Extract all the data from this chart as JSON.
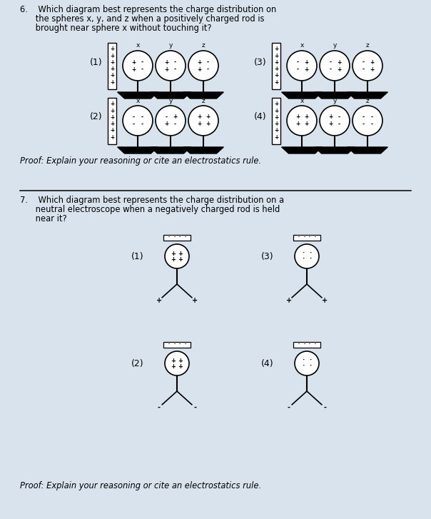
{
  "bg_color": "#d8e3ed",
  "q6_line1": "6.    Which diagram best represents the charge distribution on",
  "q6_line2": "      the spheres x, y, and z when a positively charged rod is",
  "q6_line3": "      brought near sphere x without touching it?",
  "q7_line1": "7.    Which diagram best represents the charge distribution on a",
  "q7_line2": "      neutral electroscope when a negatively charged rod is held",
  "q7_line3": "      near it?",
  "proof_text": "Proof: Explain your reasoning or cite an electrostatics rule.",
  "q6_diagrams": {
    "1": {
      "rod": [
        "+",
        "+",
        "+",
        "+",
        "+",
        "+"
      ],
      "spheres": [
        [
          "+-",
          "+-"
        ],
        [
          "+-",
          "+-"
        ],
        [
          "+-",
          "+-"
        ]
      ]
    },
    "2": {
      "rod": [
        "+",
        "+",
        "+",
        "+",
        "+",
        "+"
      ],
      "spheres": [
        [
          "--",
          "--"
        ],
        [
          "--",
          "++"
        ],
        [
          "++",
          "++"
        ]
      ]
    },
    "3": {
      "rod": [
        "+",
        "+",
        "+",
        "+",
        "+",
        "+"
      ],
      "spheres": [
        [
          "--",
          "++"
        ],
        [
          "--",
          "++"
        ],
        [
          "--",
          "++"
        ]
      ]
    },
    "4": {
      "rod": [
        "+",
        "+",
        "+",
        "+",
        "+",
        "+"
      ],
      "spheres": [
        [
          "++",
          "++"
        ],
        [
          "++",
          "--"
        ],
        [
          "--",
          "--"
        ]
      ]
    }
  }
}
